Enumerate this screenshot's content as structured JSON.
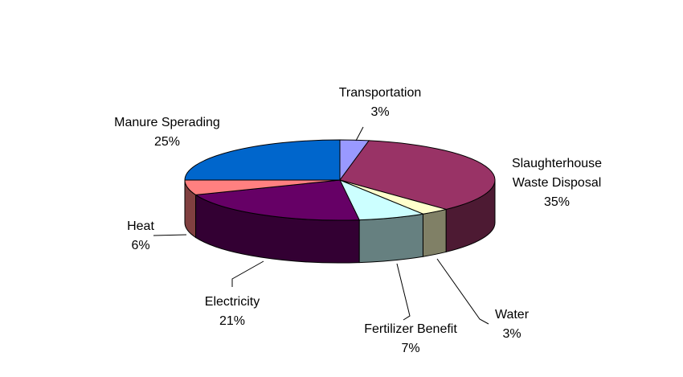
{
  "chart_data": {
    "type": "pie",
    "three_d": true,
    "slices": [
      {
        "label": "Transportation",
        "value": 3,
        "value_label": "3%",
        "color": "#9999ff"
      },
      {
        "label": "Slaughterhouse Waste Disposal",
        "label_lines": [
          "Slaughterhouse",
          "Waste Disposal"
        ],
        "value": 35,
        "value_label": "35%",
        "color": "#993366"
      },
      {
        "label": "Water",
        "value": 3,
        "value_label": "3%",
        "color": "#ffffcc"
      },
      {
        "label": "Fertilizer Benefit",
        "value": 7,
        "value_label": "7%",
        "color": "#ccffff"
      },
      {
        "label": "Electricity",
        "value": 21,
        "value_label": "21%",
        "color": "#660066"
      },
      {
        "label": "Heat",
        "value": 6,
        "value_label": "6%",
        "color": "#ff8080"
      },
      {
        "label": "Manure Sperading",
        "value": 25,
        "value_label": "25%",
        "color": "#0066cc"
      }
    ]
  }
}
